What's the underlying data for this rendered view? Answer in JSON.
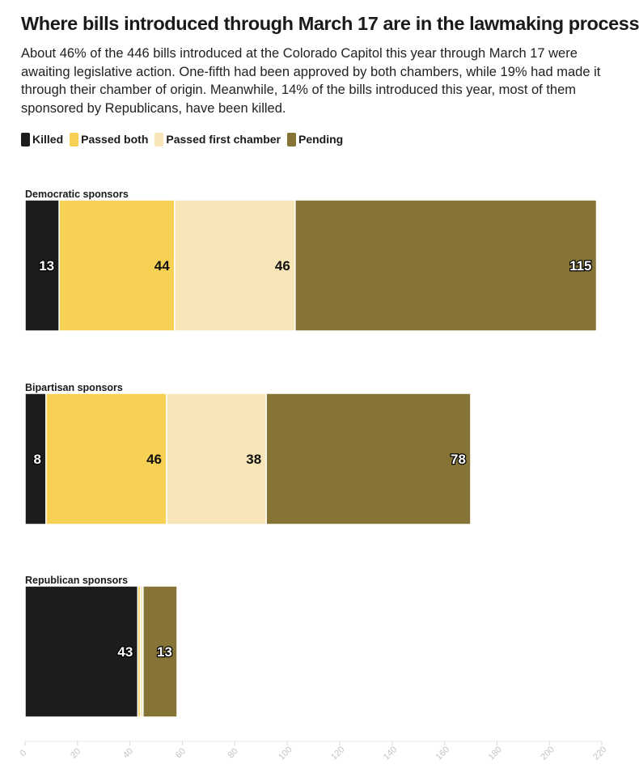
{
  "header": {
    "title": "Where bills introduced through March 17 are in the lawmaking process",
    "subtitle": "About 46% of the 446 bills introduced at the Colorado Capitol this year through March 17 were awaiting legislative action. One-fifth had been approved by both chambers, while 19% had made it through their chamber of origin. Meanwhile, 14% of the bills introduced this year, most of them sponsored by Republicans, have been killed."
  },
  "legend": [
    {
      "label": "Killed",
      "color": "#1c1c1c"
    },
    {
      "label": "Passed both",
      "color": "#f7d154"
    },
    {
      "label": "Passed first chamber",
      "color": "#f9e6b8"
    },
    {
      "label": "Pending",
      "color": "#857435"
    }
  ],
  "chart_data": {
    "type": "bar",
    "orientation": "horizontal",
    "stacked": true,
    "categories": [
      "Democratic sponsors",
      "Bipartisan sponsors",
      "Republican sponsors"
    ],
    "series": [
      {
        "name": "Killed",
        "values": [
          13,
          8,
          43
        ],
        "labels": [
          "13",
          "8",
          "43"
        ],
        "color": "#1c1c1c"
      },
      {
        "name": "Passed both",
        "values": [
          44,
          46,
          1
        ],
        "labels": [
          "44",
          "46",
          ""
        ],
        "color": "#f7d154"
      },
      {
        "name": "Passed first chamber",
        "values": [
          46,
          38,
          1
        ],
        "labels": [
          "46",
          "38",
          ""
        ],
        "color": "#f9e6b8"
      },
      {
        "name": "Pending",
        "values": [
          115,
          78,
          13
        ],
        "labels": [
          "115",
          "78",
          "13"
        ],
        "color": "#857435"
      }
    ],
    "xlim": [
      0,
      220
    ],
    "xticks": [
      0,
      20,
      40,
      60,
      80,
      100,
      120,
      140,
      160,
      180,
      200,
      220
    ],
    "xlabel": "",
    "ylabel": "",
    "grid": false,
    "legend_position": "top-left"
  }
}
